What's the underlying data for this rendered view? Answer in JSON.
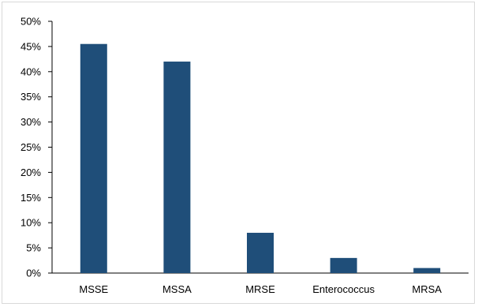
{
  "chart_data": {
    "type": "bar",
    "categories": [
      "MSSE",
      "MSSA",
      "MRSE",
      "Enterococcus",
      "MRSA"
    ],
    "values": [
      45.5,
      42,
      8,
      3,
      1
    ],
    "ylim": [
      0,
      50
    ],
    "y_ticks": [
      "0%",
      "5%",
      "10%",
      "15%",
      "20%",
      "25%",
      "30%",
      "35%",
      "40%",
      "45%",
      "50%"
    ],
    "y_tick_values": [
      0,
      5,
      10,
      15,
      20,
      25,
      30,
      35,
      40,
      45,
      50
    ],
    "bar_color": "#1f4e79",
    "grid": false,
    "legend": "none"
  }
}
